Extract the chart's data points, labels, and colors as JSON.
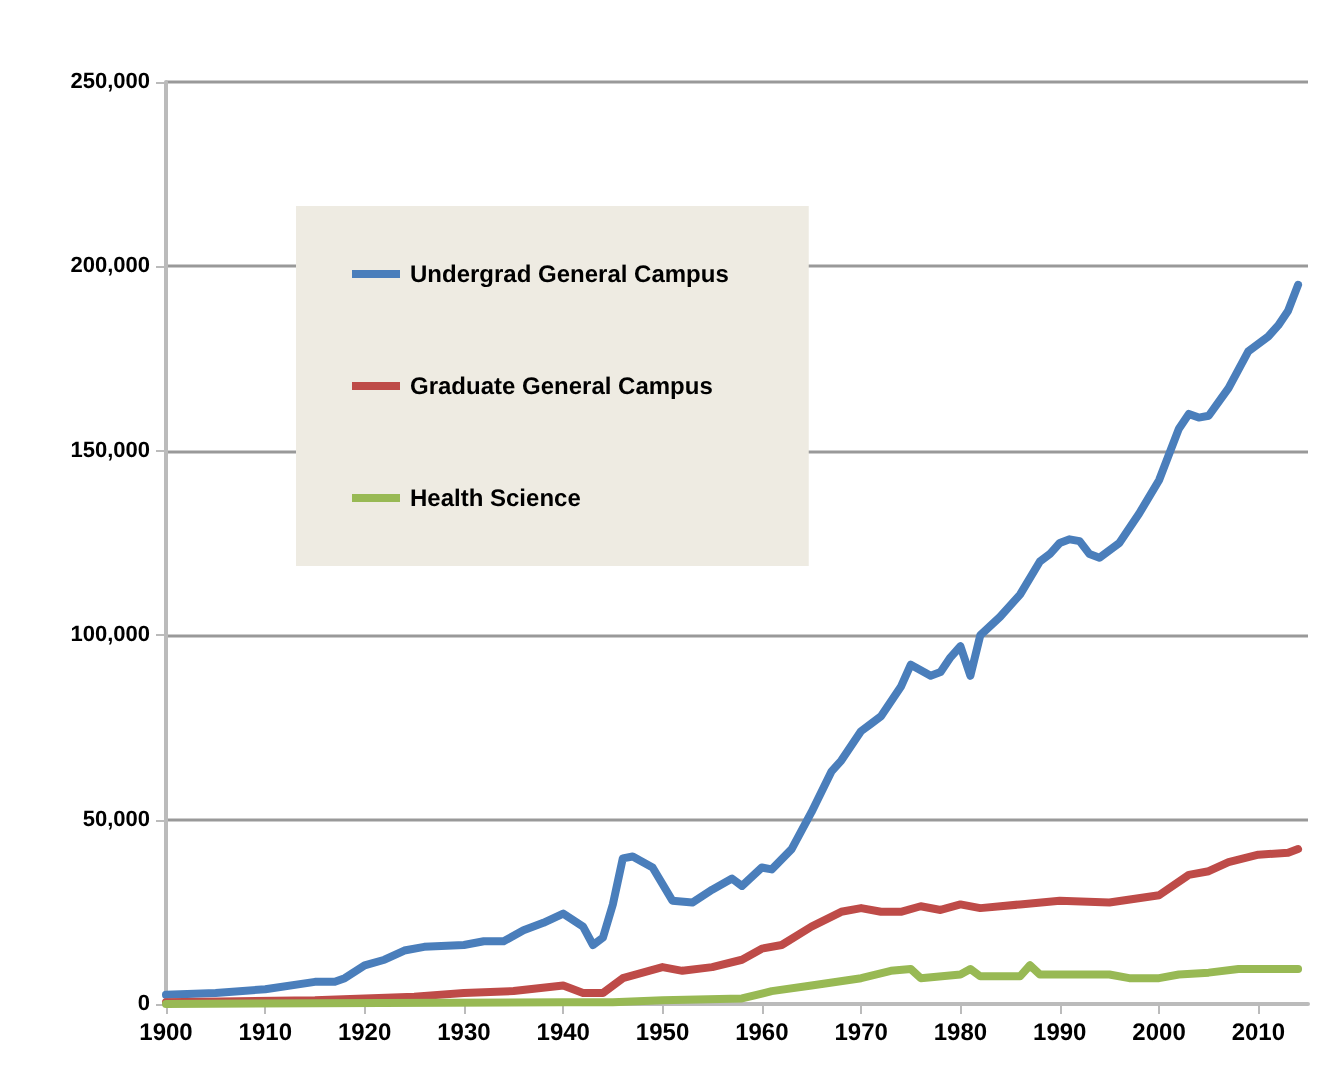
{
  "chart_data": {
    "type": "line",
    "xlim": [
      1900,
      2015
    ],
    "xticks": [
      1900,
      1910,
      1920,
      1930,
      1940,
      1950,
      1960,
      1970,
      1980,
      1990,
      2000,
      2010
    ],
    "ylim": [
      0,
      250000
    ],
    "yticks": [
      {
        "value": 0,
        "label": "0"
      },
      {
        "value": 50000,
        "label": "50,000"
      },
      {
        "value": 100000,
        "label": "100,000"
      },
      {
        "value": 150000,
        "label": "150,000"
      },
      {
        "value": 200000,
        "label": "200,000"
      },
      {
        "value": 250000,
        "label": "250,000"
      }
    ],
    "grid": "y",
    "legend": "top left",
    "marker": "none",
    "line_style": "solid",
    "series": [
      {
        "name": "Undergrad General Campus",
        "color": "#4a7ebb",
        "x": [
          1900,
          1905,
          1910,
          1915,
          1917,
          1918,
          1920,
          1922,
          1924,
          1926,
          1930,
          1932,
          1934,
          1936,
          1938,
          1940,
          1942,
          1943,
          1944,
          1945,
          1946,
          1947,
          1949,
          1951,
          1953,
          1955,
          1957,
          1958,
          1960,
          1961,
          1963,
          1965,
          1967,
          1968,
          1970,
          1971,
          1972,
          1974,
          1975,
          1977,
          1978,
          1979,
          1980,
          1981,
          1982,
          1984,
          1986,
          1988,
          1989,
          1990,
          1991,
          1992,
          1993,
          1994,
          1996,
          1998,
          2000,
          2002,
          2003,
          2004,
          2005,
          2007,
          2009,
          2011,
          2012,
          2013,
          2014
        ],
        "values": [
          2500,
          3000,
          4000,
          6000,
          6000,
          7000,
          10500,
          12000,
          14500,
          15500,
          16000,
          17000,
          17000,
          20000,
          22000,
          24500,
          21000,
          16000,
          18000,
          27000,
          39500,
          40000,
          37000,
          28000,
          27500,
          31000,
          34000,
          32000,
          37000,
          36500,
          42000,
          52000,
          63000,
          66000,
          74000,
          76000,
          78000,
          86000,
          92000,
          89000,
          90000,
          94000,
          97000,
          89000,
          100000,
          105000,
          111000,
          120000,
          122000,
          125000,
          126000,
          125500,
          122000,
          121000,
          125000,
          133000,
          142000,
          156000,
          160000,
          159000,
          159500,
          167000,
          177000,
          181000,
          184000,
          188000,
          195000
        ]
      },
      {
        "name": "Graduate General Campus",
        "color": "#be4b48",
        "x": [
          1900,
          1915,
          1925,
          1930,
          1935,
          1940,
          1942,
          1944,
          1946,
          1950,
          1952,
          1955,
          1958,
          1960,
          1962,
          1965,
          1968,
          1970,
          1972,
          1974,
          1976,
          1978,
          1980,
          1982,
          1986,
          1990,
          1995,
          2000,
          2003,
          2005,
          2007,
          2010,
          2013,
          2014
        ],
        "values": [
          500,
          1000,
          2000,
          3000,
          3500,
          5000,
          3000,
          3000,
          7000,
          10000,
          9000,
          10000,
          12000,
          15000,
          16000,
          21000,
          25000,
          26000,
          25000,
          25000,
          26500,
          25500,
          27000,
          26000,
          27000,
          28000,
          27500,
          29500,
          35000,
          36000,
          38500,
          40500,
          41000,
          42000
        ]
      },
      {
        "name": "Health Science",
        "color": "#98b954",
        "x": [
          1900,
          1940,
          1945,
          1950,
          1958,
          1961,
          1965,
          1970,
          1973,
          1975,
          1976,
          1980,
          1981,
          1982,
          1986,
          1987,
          1988,
          1995,
          1997,
          2000,
          2002,
          2005,
          2008,
          2014
        ],
        "values": [
          0,
          500,
          500,
          1000,
          1500,
          3500,
          5000,
          7000,
          9000,
          9500,
          7000,
          8000,
          9500,
          7500,
          7500,
          10500,
          8000,
          8000,
          7000,
          7000,
          8000,
          8500,
          9500,
          9500
        ]
      }
    ]
  }
}
